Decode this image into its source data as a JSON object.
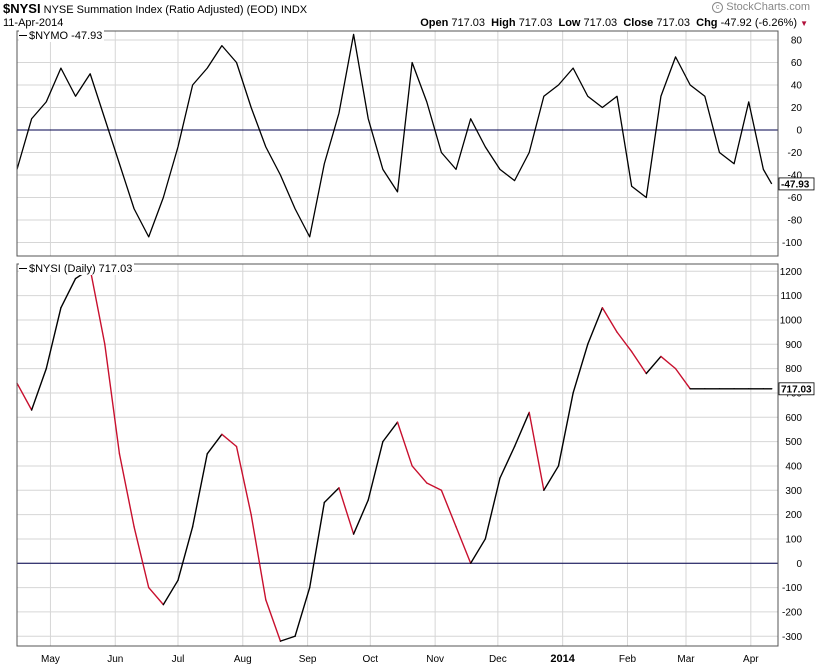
{
  "header": {
    "symbol": "$NYSI",
    "name": "NYSE Summation Index (Ratio Adjusted) (EOD)",
    "exchange": "INDX",
    "date": "11-Apr-2014",
    "brand": "StockCharts.com",
    "open_label": "Open",
    "open": "717.03",
    "high_label": "High",
    "high": "717.03",
    "low_label": "Low",
    "low": "717.03",
    "close_label": "Close",
    "close": "717.03",
    "chg_label": "Chg",
    "chg": "-47.92 (-6.26%)"
  },
  "colors": {
    "line": "#000000",
    "down": "#c8102e",
    "zero": "#00004d",
    "grid": "#d6d6d6",
    "border": "#555555"
  },
  "chart_data": [
    {
      "type": "line",
      "legend": "$NYMO -47.93",
      "last_value": "-47.93",
      "ylim": [
        -112,
        88
      ],
      "yticks": [
        -100,
        -80,
        -60,
        -40,
        -20,
        0,
        20,
        40,
        60,
        80
      ],
      "reference_line": 0,
      "x": [
        "2013-04-15",
        "2013-04-22",
        "2013-04-29",
        "2013-05-06",
        "2013-05-13",
        "2013-05-20",
        "2013-05-27",
        "2013-06-03",
        "2013-06-10",
        "2013-06-17",
        "2013-06-24",
        "2013-07-01",
        "2013-07-08",
        "2013-07-15",
        "2013-07-22",
        "2013-07-29",
        "2013-08-05",
        "2013-08-12",
        "2013-08-19",
        "2013-08-26",
        "2013-09-02",
        "2013-09-09",
        "2013-09-16",
        "2013-09-23",
        "2013-09-30",
        "2013-10-07",
        "2013-10-14",
        "2013-10-21",
        "2013-10-28",
        "2013-11-04",
        "2013-11-11",
        "2013-11-18",
        "2013-11-25",
        "2013-12-02",
        "2013-12-09",
        "2013-12-16",
        "2013-12-23",
        "2013-12-30",
        "2014-01-06",
        "2014-01-13",
        "2014-01-20",
        "2014-01-27",
        "2014-02-03",
        "2014-02-10",
        "2014-02-17",
        "2014-02-24",
        "2014-03-03",
        "2014-03-10",
        "2014-03-17",
        "2014-03-24",
        "2014-03-31",
        "2014-04-07",
        "2014-04-11"
      ],
      "values": [
        -35,
        10,
        25,
        55,
        30,
        50,
        10,
        -30,
        -70,
        -95,
        -60,
        -15,
        40,
        55,
        75,
        60,
        20,
        -15,
        -40,
        -70,
        -95,
        -30,
        15,
        85,
        10,
        -35,
        -55,
        60,
        25,
        -20,
        -35,
        10,
        -15,
        -35,
        -45,
        -20,
        30,
        40,
        55,
        30,
        20,
        30,
        -50,
        -60,
        30,
        65,
        40,
        30,
        -20,
        -30,
        25,
        -35,
        -47.93
      ]
    },
    {
      "type": "line",
      "legend": "$NYSI (Daily) 717.03",
      "last_value": "717.03",
      "ylim": [
        -340,
        1230
      ],
      "yticks": [
        -300,
        -200,
        -100,
        0,
        100,
        200,
        300,
        400,
        500,
        600,
        700,
        800,
        900,
        1000,
        1100,
        1200
      ],
      "reference_line": 0,
      "up_color": "#000000",
      "down_color": "#c8102e",
      "x": [
        "2013-04-15",
        "2013-04-22",
        "2013-04-29",
        "2013-05-06",
        "2013-05-13",
        "2013-05-20",
        "2013-05-27",
        "2013-06-03",
        "2013-06-10",
        "2013-06-17",
        "2013-06-24",
        "2013-07-01",
        "2013-07-08",
        "2013-07-15",
        "2013-07-22",
        "2013-07-29",
        "2013-08-05",
        "2013-08-12",
        "2013-08-19",
        "2013-08-26",
        "2013-09-02",
        "2013-09-09",
        "2013-09-16",
        "2013-09-23",
        "2013-09-30",
        "2013-10-07",
        "2013-10-14",
        "2013-10-21",
        "2013-10-28",
        "2013-11-04",
        "2013-11-11",
        "2013-11-18",
        "2013-11-25",
        "2013-12-02",
        "2013-12-09",
        "2013-12-16",
        "2013-12-23",
        "2013-12-30",
        "2014-01-06",
        "2014-01-13",
        "2014-01-20",
        "2014-01-27",
        "2014-02-03",
        "2014-02-10",
        "2014-02-17",
        "2014-02-24",
        "2014-03-03",
        "2014-03-10",
        "2014-03-17",
        "2014-03-24",
        "2014-03-31",
        "2014-04-07",
        "2014-04-11"
      ],
      "values": [
        740,
        630,
        800,
        1050,
        1170,
        1210,
        900,
        450,
        150,
        -100,
        -170,
        -70,
        150,
        450,
        530,
        480,
        200,
        -150,
        -320,
        -300,
        -100,
        250,
        310,
        120,
        260,
        500,
        580,
        400,
        330,
        300,
        150,
        0,
        100,
        350,
        480,
        620,
        300,
        400,
        700,
        900,
        1050,
        950,
        870,
        780,
        850,
        800,
        717.03,
        717.03,
        717.03,
        717.03,
        717.03,
        717.03,
        717.03
      ]
    }
  ],
  "x_axis": {
    "months": [
      {
        "label": "May",
        "date": "2013-05-01"
      },
      {
        "label": "Jun",
        "date": "2013-06-01"
      },
      {
        "label": "Jul",
        "date": "2013-07-01"
      },
      {
        "label": "Aug",
        "date": "2013-08-01"
      },
      {
        "label": "Sep",
        "date": "2013-09-01"
      },
      {
        "label": "Oct",
        "date": "2013-10-01"
      },
      {
        "label": "Nov",
        "date": "2013-11-01"
      },
      {
        "label": "Dec",
        "date": "2013-12-01"
      },
      {
        "label": "2014",
        "date": "2014-01-01"
      },
      {
        "label": "Feb",
        "date": "2014-02-01"
      },
      {
        "label": "Mar",
        "date": "2014-03-01"
      },
      {
        "label": "Apr",
        "date": "2014-04-01"
      }
    ]
  }
}
